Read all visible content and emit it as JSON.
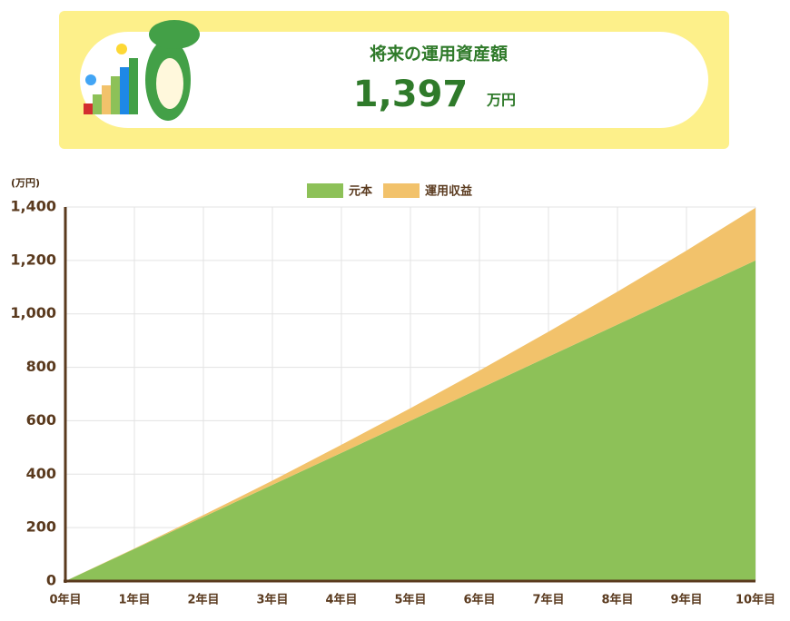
{
  "header": {
    "title": "将来の運用資産額",
    "amount": "1,397",
    "unit": "万円"
  },
  "chart_data": {
    "type": "stacked_area",
    "y_axis_label": "(万円)",
    "categories": [
      "0年目",
      "1年目",
      "2年目",
      "3年目",
      "4年目",
      "5年目",
      "6年目",
      "7年目",
      "8年目",
      "9年目",
      "10年目"
    ],
    "series": [
      {
        "name": "元本",
        "color": "#8dc158",
        "values": [
          0,
          120,
          240,
          360,
          480,
          600,
          720,
          840,
          960,
          1080,
          1200
        ]
      },
      {
        "name": "運用収益",
        "color": "#f2c26b",
        "values": [
          0,
          2,
          7,
          16,
          30,
          47,
          68,
          93,
          123,
          157,
          197
        ]
      }
    ],
    "ylim": [
      0,
      1400
    ],
    "yticks": [
      0,
      200,
      400,
      600,
      800,
      {
        "value": 1000,
        "label": "1,000"
      },
      {
        "value": 1200,
        "label": "1,200"
      },
      {
        "value": 1400,
        "label": "1,400"
      }
    ],
    "grid": true,
    "legend": "top"
  }
}
